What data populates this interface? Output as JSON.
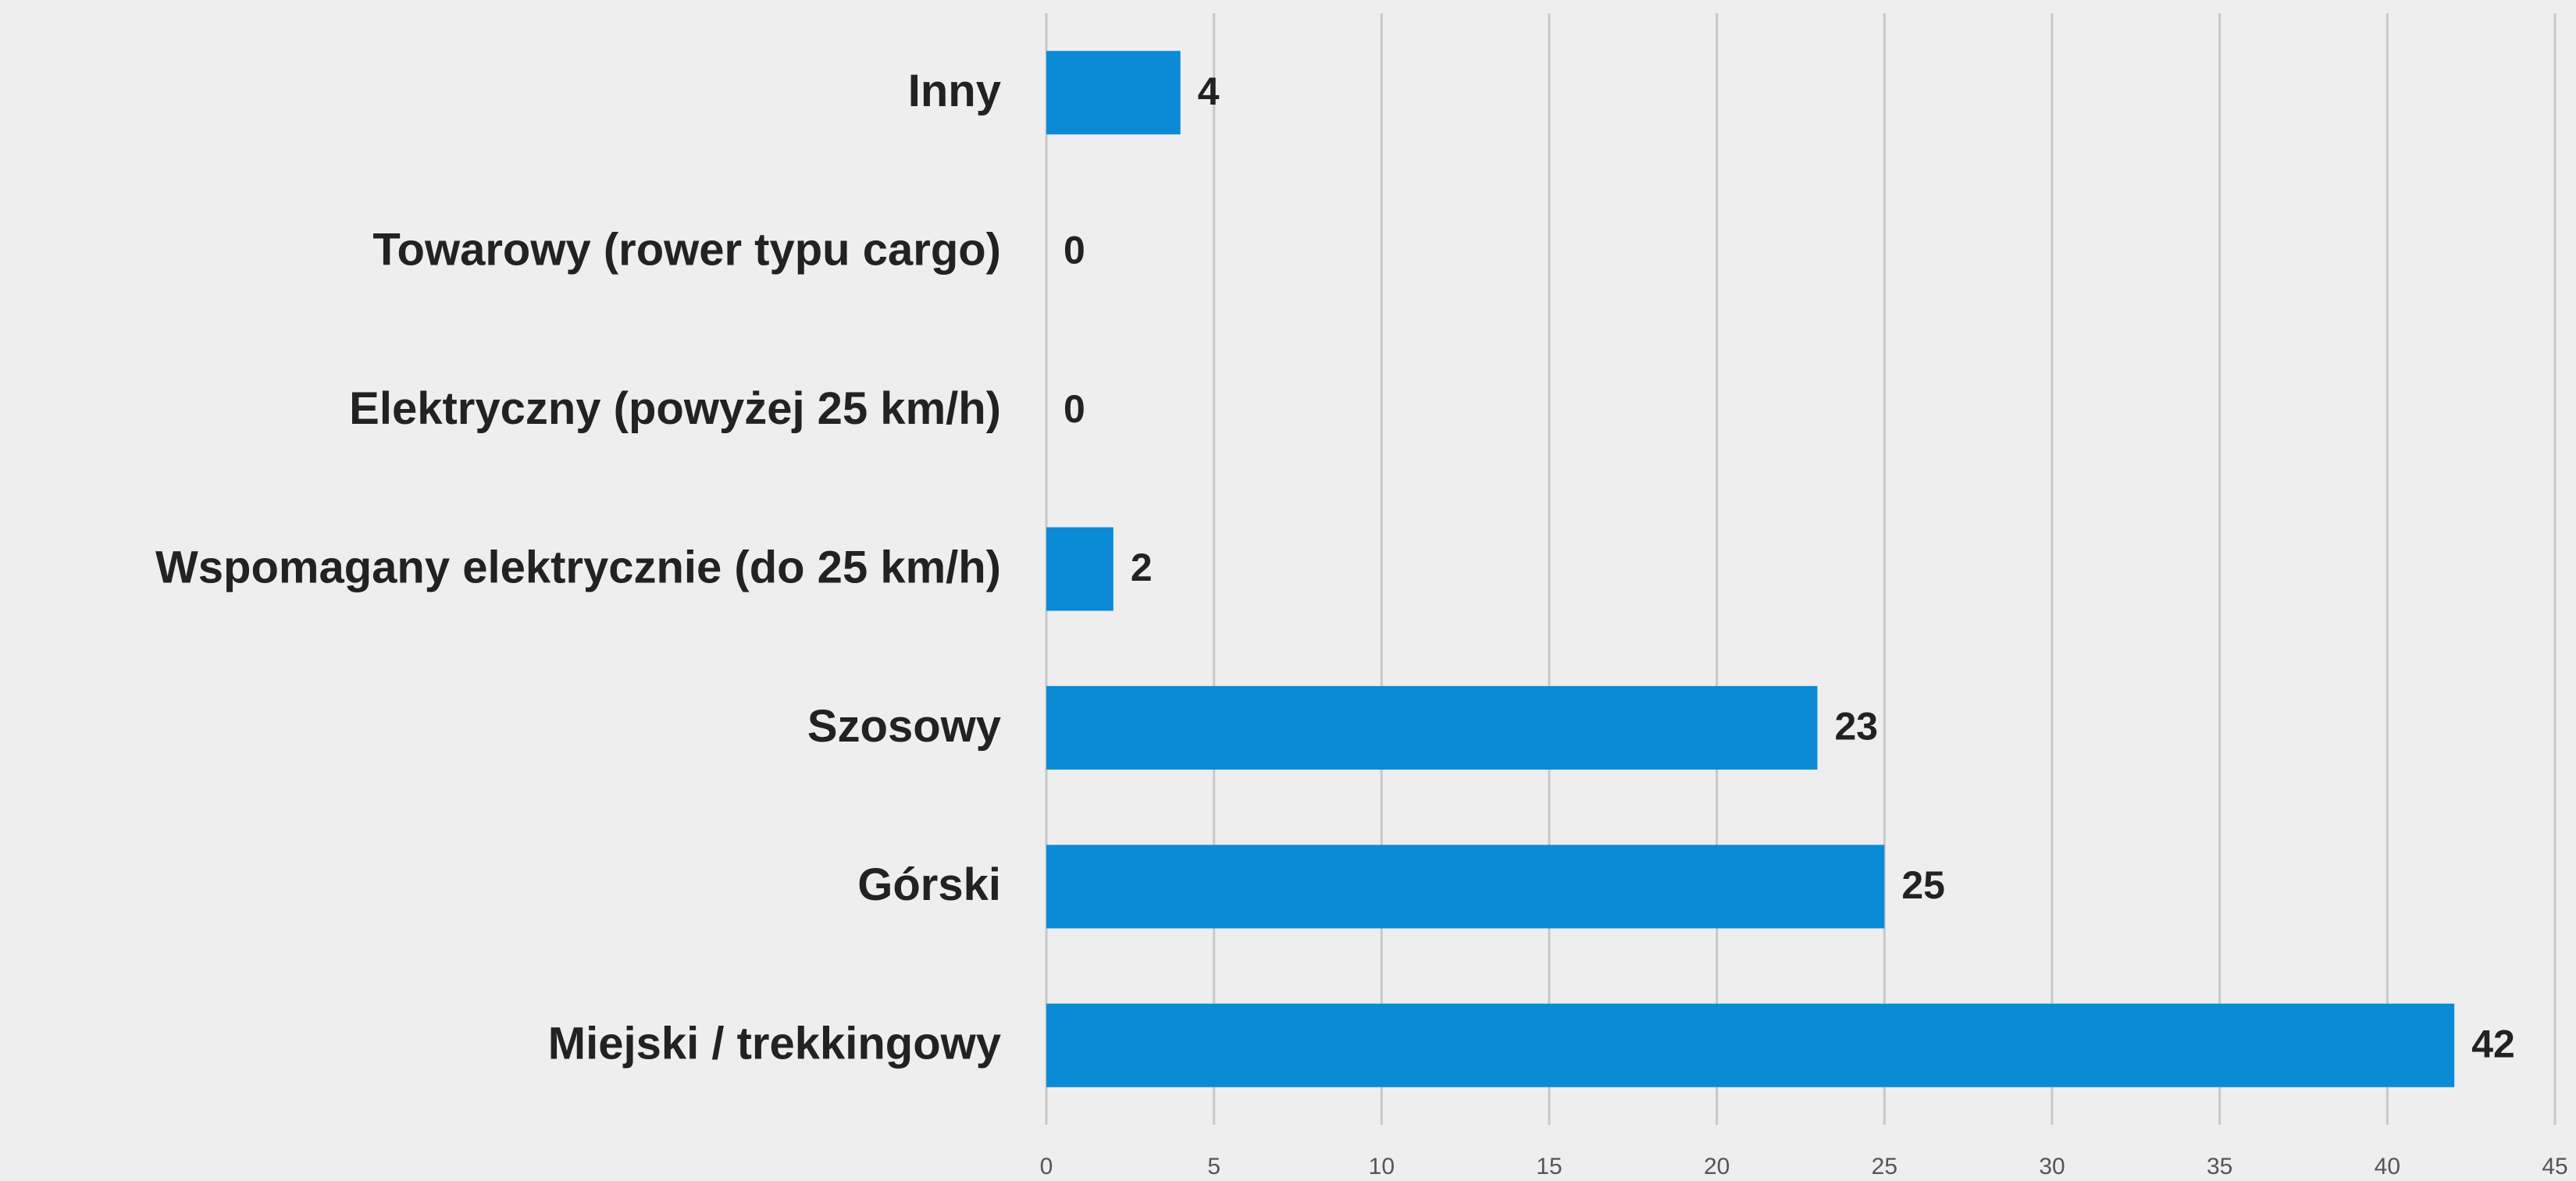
{
  "chart_data": {
    "type": "barh",
    "categories": [
      "Inny",
      "Towarowy (rower typu cargo)",
      "Elektryczny (powyżej 25 km/h)",
      "Wspomagany elektrycznie (do 25 km/h)",
      "Szosowy",
      "Górski",
      "Miejski / trekkingowy"
    ],
    "values": [
      4,
      0,
      0,
      2,
      23,
      25,
      42
    ],
    "color": "#0b8bd5",
    "xlim": [
      0,
      45
    ],
    "xticks": [
      0,
      5,
      10,
      15,
      20,
      25,
      30,
      35,
      40,
      45
    ],
    "grid": true
  }
}
